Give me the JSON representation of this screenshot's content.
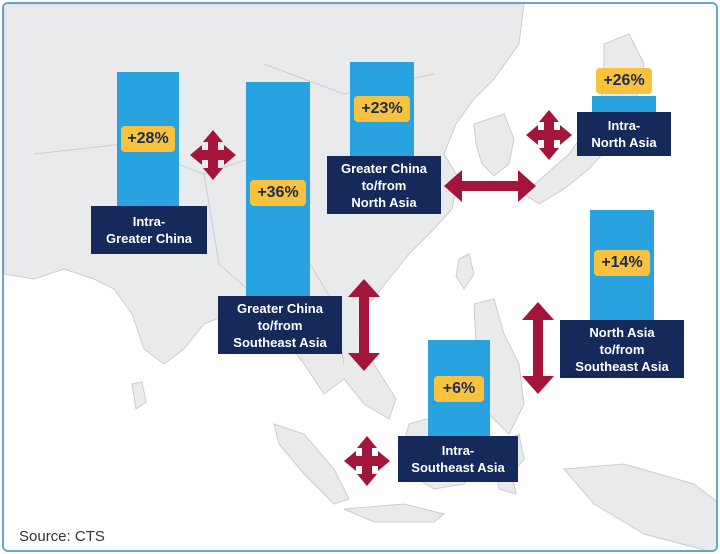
{
  "colors": {
    "bar": "#29a3df",
    "badge": "#f9c23c",
    "label_bg": "#15295a",
    "arrow": "#a3153a",
    "land": "#e9eaec",
    "sea": "#ffffff",
    "border": "#5fa8d3"
  },
  "regions": {
    "intra_greater_china": {
      "label": "Intra-\nGreater China",
      "growth": "+28%",
      "growth_value": 28
    },
    "greater_china_southeast_asia": {
      "label": "Greater China\nto/from\nSoutheast Asia",
      "growth": "+36%",
      "growth_value": 36
    },
    "greater_china_north_asia": {
      "label": "Greater China\nto/from\nNorth Asia",
      "growth": "+23%",
      "growth_value": 23
    },
    "intra_north_asia": {
      "label": "Intra-\nNorth Asia",
      "growth": "+26%",
      "growth_value": 26
    },
    "north_asia_southeast_asia": {
      "label": "North Asia\nto/from\nSoutheast Asia",
      "growth": "+14%",
      "growth_value": 14
    },
    "intra_southeast_asia": {
      "label": "Intra-\nSoutheast Asia",
      "growth": "+6%",
      "growth_value": 6
    }
  },
  "arrow_icons": {
    "intra_greater_china": "cross-arrow-icon",
    "greater_china_southeast_asia": "vertical-double-arrow-icon",
    "greater_china_north_asia": "horizontal-double-arrow-icon",
    "intra_north_asia": "cross-arrow-icon",
    "north_asia_southeast_asia": "vertical-double-arrow-icon",
    "intra_southeast_asia": "cross-arrow-icon"
  },
  "source": "Source:  CTS"
}
